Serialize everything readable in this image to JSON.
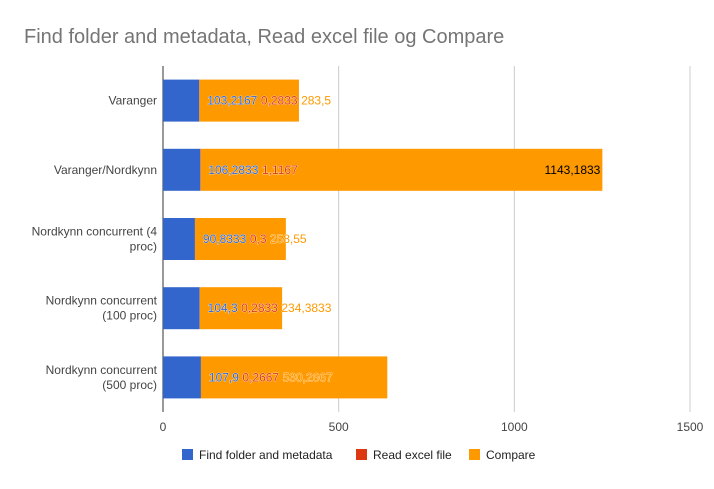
{
  "chart_data": {
    "type": "bar",
    "orientation": "horizontal",
    "stacked": true,
    "title": "Find folder and metadata, Read excel file og Compare",
    "xlabel": "",
    "ylabel": "",
    "xlim": [
      0,
      1500
    ],
    "xticks": [
      "0",
      "500",
      "1000",
      "1500"
    ],
    "grid": true,
    "legend_position": "bottom",
    "categories": [
      "Varanger",
      "Varanger/Nordkynn",
      "Nordkynn concurrent (4 proc)",
      "Nordkynn concurrent (100 proc)",
      "Nordkynn concurrent (500 proc)"
    ],
    "category_lines": [
      [
        "Varanger"
      ],
      [
        "Varanger/Nordkynn"
      ],
      [
        "Nordkynn concurrent (4",
        "proc)"
      ],
      [
        "Nordkynn concurrent",
        "(100 proc)"
      ],
      [
        "Nordkynn concurrent",
        "(500 proc)"
      ]
    ],
    "series": [
      {
        "name": "Find folder and metadata",
        "color": "#3366cc",
        "values": [
          103.2167,
          106.2833,
          90.8333,
          104.3,
          107.9
        ],
        "labels": [
          "103,2167",
          "106,2833",
          "90,8333",
          "104,3",
          "107,9"
        ]
      },
      {
        "name": "Read excel file",
        "color": "#dc3912",
        "values": [
          0.2833,
          1.1167,
          0.3,
          0.2833,
          0.2667
        ],
        "labels": [
          "0,2833",
          "1,1167",
          "0,3",
          "0,2833",
          "0,2667"
        ]
      },
      {
        "name": "Compare",
        "color": "#ff9900",
        "values": [
          283.5,
          1143.1833,
          258.55,
          234.3833,
          530.2667
        ],
        "labels": [
          "283,5",
          "1143,1833",
          "258,55",
          "234,3833",
          "530,2667"
        ]
      }
    ]
  }
}
